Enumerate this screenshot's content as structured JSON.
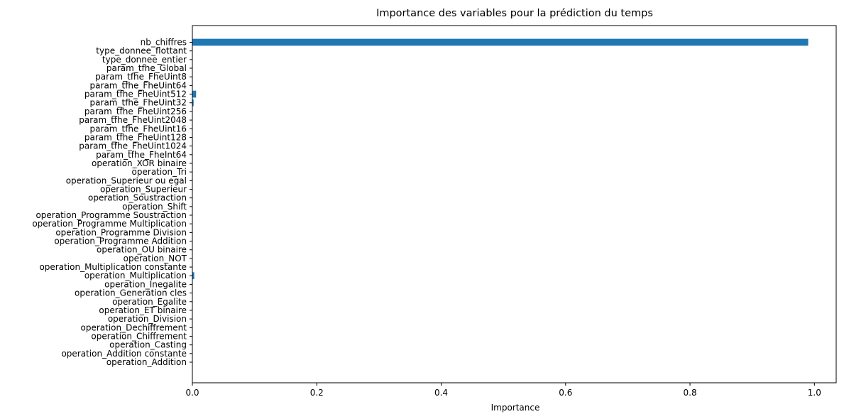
{
  "chart_data": {
    "type": "bar",
    "orientation": "horizontal",
    "title": "Importance des variables pour la prédiction du temps",
    "xlabel": "Importance",
    "ylabel": "",
    "xlim": [
      0,
      1.035
    ],
    "xticks": [
      0.0,
      0.2,
      0.4,
      0.6,
      0.8,
      1.0
    ],
    "xtick_labels": [
      "0.0",
      "0.2",
      "0.4",
      "0.6",
      "0.8",
      "1.0"
    ],
    "grid": false,
    "bar_color": "#1f77b4",
    "categories": [
      "operation_Addition",
      "operation_Addition constante",
      "operation_Casting",
      "operation_Chiffrement",
      "operation_Dechiffrement",
      "operation_Division",
      "operation_ET binaire",
      "operation_Egalite",
      "operation_Generation cles",
      "operation_Inegalite",
      "operation_Multiplication",
      "operation_Multiplication constante",
      "operation_NOT",
      "operation_OU binaire",
      "operation_Programme Addition",
      "operation_Programme Division",
      "operation_Programme Multiplication",
      "operation_Programme Soustraction",
      "operation_Shift",
      "operation_Soustraction",
      "operation_Superieur",
      "operation_Superieur ou egal",
      "operation_Tri",
      "operation_XOR binaire",
      "param_tfhe_FheInt64",
      "param_tfhe_FheUint1024",
      "param_tfhe_FheUint128",
      "param_tfhe_FheUint16",
      "param_tfhe_FheUint2048",
      "param_tfhe_FheUint256",
      "param_tfhe_FheUint32",
      "param_tfhe_FheUint512",
      "param_tfhe_FheUint64",
      "param_tfhe_FheUint8",
      "param_tfhe_Global",
      "type_donnee_entier",
      "type_donnee_flottant",
      "nb_chiffres"
    ],
    "values": [
      0.0,
      0.0,
      0.0,
      0.0,
      0.0,
      0.0,
      0.0,
      0.0,
      0.0,
      0.0,
      0.003,
      0.0,
      0.0,
      0.0,
      0.0,
      0.0,
      0.0,
      0.0,
      0.0,
      0.0,
      0.0,
      0.0,
      0.0,
      0.0,
      0.0,
      0.0,
      0.0,
      0.0,
      0.0,
      0.0,
      0.002,
      0.006,
      0.0,
      0.0,
      0.0,
      0.0,
      0.0,
      0.99
    ]
  }
}
